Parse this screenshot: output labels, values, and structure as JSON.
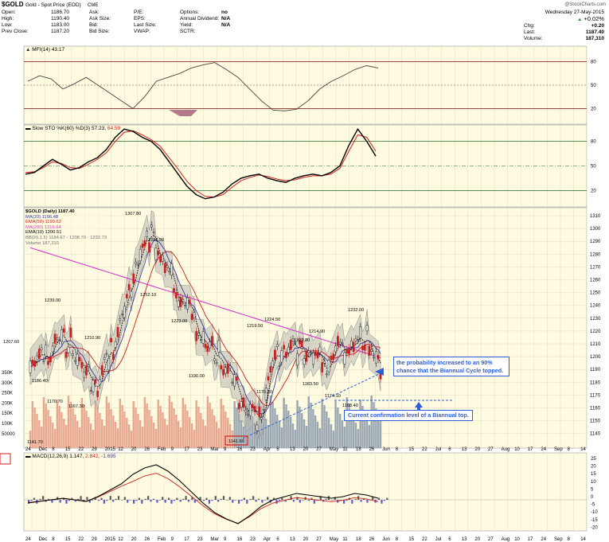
{
  "header": {
    "symbol": "$GOLD",
    "description": "Gold - Spot Price (EOD)",
    "exchange": "CME",
    "watermark": "@StockCharts.com",
    "date": "Wednesday  27-May-2015",
    "change_pct": "+0.02%",
    "chg_label": "Chg:",
    "chg_value": "+0.20",
    "last_label": "Last:",
    "last_value": "1187.40",
    "volume_label": "Volume:",
    "volume_value": "187,310",
    "quote": [
      {
        "label": "Open:",
        "value": "1186.70"
      },
      {
        "label": "High:",
        "value": "1190.40"
      },
      {
        "label": "Low:",
        "value": "1183.00"
      },
      {
        "label": "Prev Close:",
        "value": "1187.20"
      }
    ],
    "quote2": [
      {
        "label": "Ask:",
        "value": ""
      },
      {
        "label": "Ask Size:",
        "value": ""
      },
      {
        "label": "Bid:",
        "value": ""
      },
      {
        "label": "Bid Size:",
        "value": ""
      }
    ],
    "quote3": [
      {
        "label": "P/E:",
        "value": ""
      },
      {
        "label": "EPS:",
        "value": ""
      },
      {
        "label": "Last Size:",
        "value": ""
      },
      {
        "label": "VWAP:",
        "value": ""
      }
    ],
    "quote4": [
      {
        "label": "Options:",
        "value": "no"
      },
      {
        "label": "Annual Dividend:",
        "value": "N/A"
      },
      {
        "label": "Yield:",
        "value": "N/A"
      },
      {
        "label": "SCTR:",
        "value": ""
      }
    ]
  },
  "panels": {
    "mfi_label": "MFI(14) 43.17",
    "sto_label_a": "Slow STO %K(60) %D(3) 57.23,",
    "sto_label_b": "64.59",
    "macd_label_a": "MACD(12,26,9) 1.147,",
    "macd_label_b": "2.842,",
    "macd_label_c": "-1.695"
  },
  "legend": {
    "items": [
      {
        "text": "$GOLD (Daily) 1187.40",
        "color": "#000000"
      },
      {
        "text": "MA(20) 1196.48",
        "color": "#3a3aa8"
      },
      {
        "text": "EMA(50) 1199.62",
        "color": "#c81e1e"
      },
      {
        "text": "MA(200) 1216.64",
        "color": "#d23cc8"
      },
      {
        "text": "EMA(10) 1200.51",
        "color": "#000000"
      },
      {
        "text": "BB(20,1.5) 1184.67 - 1208.70 - 1232.73",
        "color": "#707070"
      },
      {
        "text": "Volume 187,310",
        "color": "#707070"
      }
    ]
  },
  "annotations": {
    "main_text": " the probability increased to an 90% chance that the Biannual Cycle topped.",
    "confirm_text": "Current confirmation level of a Biannual top."
  },
  "price_labels": [
    "1207.60",
    "1186.40",
    "1170.70",
    "1167.30",
    "1141.70",
    "1210.90",
    "1239.00",
    "1307.80",
    "1286.50",
    "1252.10",
    "1223.00",
    "1190.00",
    "1219.50",
    "1224.50",
    "1209.80",
    "1183.50",
    "1170.20",
    "1214.90",
    "1174.10",
    "1168.40",
    "1232.00",
    "1141.60"
  ],
  "axes": {
    "mfi_ticks": [
      "80",
      "50",
      "20"
    ],
    "sto_ticks": [
      "80",
      "50",
      "20"
    ],
    "price_ticks": [
      "1310",
      "1300",
      "1290",
      "1280",
      "1270",
      "1260",
      "1250",
      "1240",
      "1230",
      "1220",
      "1210",
      "1200",
      "1190",
      "1180",
      "1170",
      "1160",
      "1150",
      "1140"
    ],
    "vol_ticks": [
      "350K",
      "300K",
      "250K",
      "200K",
      "150K",
      "100K",
      "50000"
    ],
    "macd_ticks": [
      "25",
      "20",
      "15",
      "10",
      "5",
      "0",
      "-5",
      "-10",
      "-15",
      "-20"
    ],
    "x_labels": [
      "24",
      "Dec",
      "8",
      "15",
      "22",
      "29",
      "2015",
      "12",
      "20",
      "26",
      "Feb",
      "9",
      "17",
      "23",
      "Mar",
      "9",
      "16",
      "23",
      "Apr",
      "6",
      "13",
      "20",
      "27",
      "May",
      "11",
      "18",
      "26",
      "Jun",
      "8",
      "15",
      "22",
      "Jul",
      "6",
      "13",
      "20",
      "27",
      "Aug",
      "10",
      "17",
      "24",
      "Sep",
      "8",
      "14"
    ]
  },
  "chart_data": [
    {
      "type": "line",
      "title": "MFI(14) 43.17",
      "ylim": [
        0,
        100
      ],
      "reference_lines": [
        80,
        50,
        20
      ],
      "x": [
        0,
        5,
        10,
        15,
        20,
        25,
        30,
        35,
        40,
        45,
        50,
        55,
        60,
        65,
        70,
        75,
        80,
        85,
        90,
        95,
        100,
        105,
        110,
        115,
        120,
        125,
        130,
        135,
        140,
        145,
        150
      ],
      "values": [
        55,
        62,
        58,
        45,
        52,
        60,
        50,
        40,
        30,
        20,
        35,
        55,
        60,
        65,
        72,
        76,
        79,
        70,
        60,
        45,
        30,
        18,
        17,
        19,
        30,
        45,
        55,
        62,
        70,
        75,
        72
      ]
    },
    {
      "type": "line",
      "title": "Slow STO %K(60) %D(3)",
      "ylim": [
        0,
        100
      ],
      "reference_lines": [
        80,
        50,
        20
      ],
      "series": [
        {
          "name": "%K",
          "values": [
            40,
            42,
            50,
            58,
            52,
            45,
            48,
            55,
            60,
            70,
            85,
            95,
            92,
            85,
            80,
            70,
            55,
            40,
            25,
            15,
            10,
            12,
            18,
            28,
            35,
            38,
            40,
            35,
            32,
            30,
            35,
            38,
            40,
            38,
            42,
            50,
            75,
            95,
            80,
            62
          ]
        },
        {
          "name": "%D",
          "values": [
            42,
            43,
            48,
            55,
            53,
            48,
            47,
            52,
            58,
            66,
            80,
            91,
            93,
            88,
            82,
            74,
            60,
            46,
            31,
            20,
            13,
            12,
            15,
            24,
            32,
            36,
            39,
            37,
            34,
            32,
            33,
            36,
            38,
            38,
            40,
            47,
            68,
            88,
            85,
            68
          ]
        }
      ]
    },
    {
      "type": "bar",
      "title": "$GOLD (Daily) 1187.40",
      "ylabel": "",
      "ylim": [
        1135,
        1315
      ],
      "x": [
        "24",
        "Dec",
        "8",
        "15",
        "22",
        "29",
        "2015",
        "12",
        "20",
        "26",
        "Feb",
        "9",
        "17",
        "23",
        "Mar",
        "9",
        "16",
        "23",
        "Apr",
        "6",
        "13",
        "20",
        "27",
        "May",
        "11",
        "18",
        "26"
      ],
      "values": [
        1200,
        1195,
        1215,
        1210,
        1185,
        1178,
        1205,
        1235,
        1280,
        1295,
        1270,
        1250,
        1230,
        1210,
        1200,
        1180,
        1160,
        1150,
        1195,
        1210,
        1205,
        1200,
        1196,
        1205,
        1210,
        1215,
        1187
      ]
    },
    {
      "type": "bar",
      "title": "MACD(12,26,9) 1.147, 2.842, -1.695",
      "ylim": [
        -20,
        25
      ],
      "x": [
        0,
        5,
        10,
        15,
        20,
        25,
        30,
        35,
        40,
        45,
        50,
        55,
        60,
        65,
        70,
        75,
        80,
        85,
        90,
        95,
        100,
        105,
        110,
        115,
        120,
        125,
        130,
        135,
        140,
        145,
        150
      ],
      "values": [
        -2,
        -1,
        0,
        1,
        0,
        -1,
        2,
        6,
        10,
        16,
        20,
        22,
        18,
        12,
        5,
        -2,
        -8,
        -12,
        -15,
        -10,
        -4,
        0,
        2,
        4,
        3,
        2,
        1,
        2,
        4,
        3,
        1
      ]
    }
  ]
}
